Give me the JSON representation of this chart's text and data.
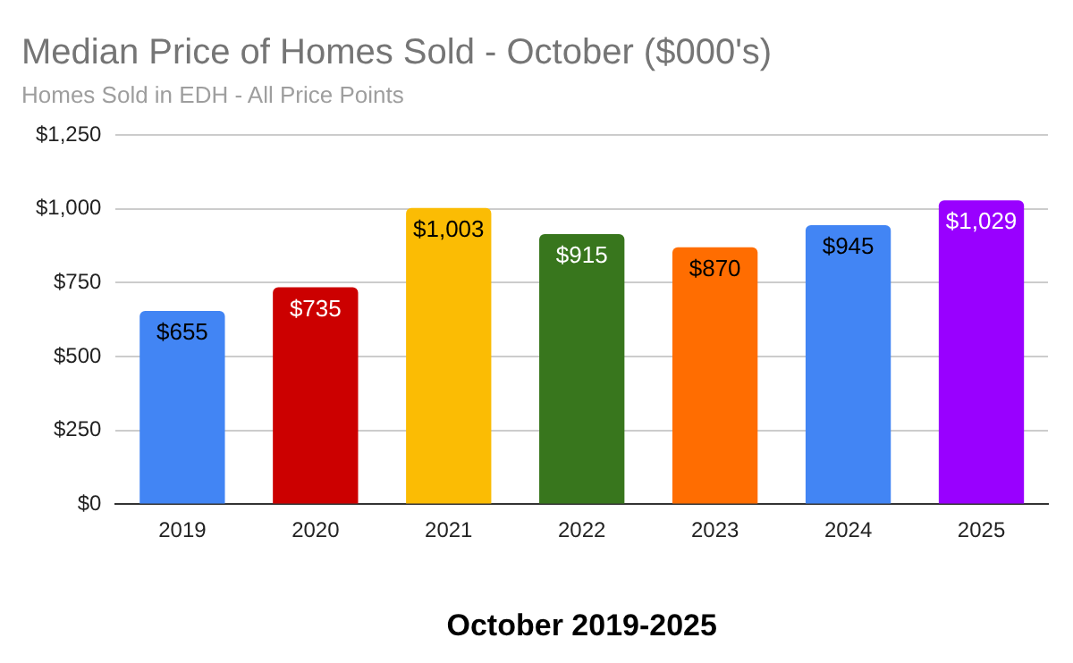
{
  "chart_data": {
    "type": "bar",
    "title": "Median Price of Homes Sold - October ($000's)",
    "subtitle": "Homes Sold in EDH - All Price Points",
    "xlabel": "October 2019-2025",
    "categories": [
      "2019",
      "2020",
      "2021",
      "2022",
      "2023",
      "2024",
      "2025"
    ],
    "values": [
      655,
      735,
      1003,
      915,
      870,
      945,
      1029
    ],
    "colors": [
      "#4285f4",
      "#cc0000",
      "#fbbc04",
      "#38761d",
      "#ff6d01",
      "#4285f4",
      "#9900ff"
    ],
    "value_labels": [
      "$655",
      "$735",
      "$1,003",
      "$915",
      "$870",
      "$945",
      "$1,029"
    ],
    "ylim": [
      0,
      1250
    ],
    "yticks": [
      {
        "value": 0,
        "label": "$0"
      },
      {
        "value": 250,
        "label": "$250"
      },
      {
        "value": 500,
        "label": "$500"
      },
      {
        "value": 750,
        "label": "$750"
      },
      {
        "value": 1000,
        "label": "$1,000"
      },
      {
        "value": 1250,
        "label": "$1,250"
      }
    ],
    "grid": "y",
    "legend": false
  }
}
